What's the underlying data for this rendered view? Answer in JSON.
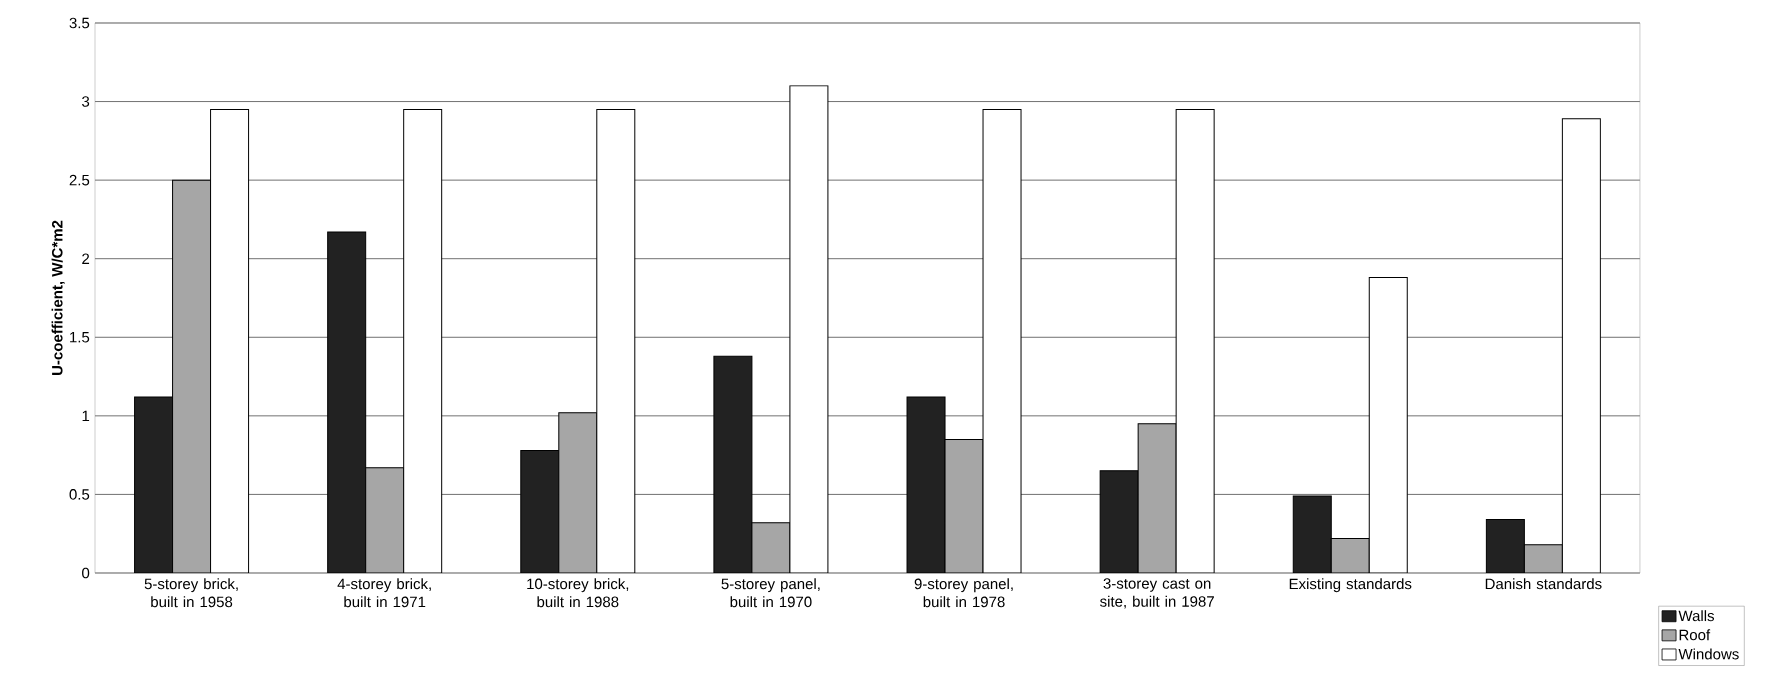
{
  "chart_data": {
    "type": "bar",
    "ylabel": "U-coefficient, W/C*m2",
    "categories": [
      "5-storey brick, built in 1958",
      "4-storey brick, built in 1971",
      "10-storey brick, built in 1988",
      "5-storey panel, built in 1970",
      "9-storey panel, built in 1978",
      "3-storey cast on site, built in 1987",
      "Existing standards",
      "Danish standards"
    ],
    "series": [
      {
        "name": "Walls",
        "color": "#222222",
        "values": [
          1.12,
          2.17,
          0.78,
          1.38,
          1.12,
          0.65,
          0.49,
          0.34
        ]
      },
      {
        "name": "Roof",
        "color": "#a6a6a6",
        "values": [
          2.5,
          0.67,
          1.02,
          0.32,
          0.85,
          0.95,
          0.22,
          0.18
        ]
      },
      {
        "name": "Windows",
        "color": "#ffffff",
        "values": [
          2.95,
          2.95,
          2.95,
          3.1,
          2.95,
          2.95,
          1.88,
          2.89
        ]
      }
    ],
    "ylim": [
      0,
      3.5
    ],
    "yticks": [
      0,
      0.5,
      1,
      1.5,
      2,
      2.5,
      3,
      3.5
    ],
    "grid": "y",
    "legend": "bottom right"
  }
}
